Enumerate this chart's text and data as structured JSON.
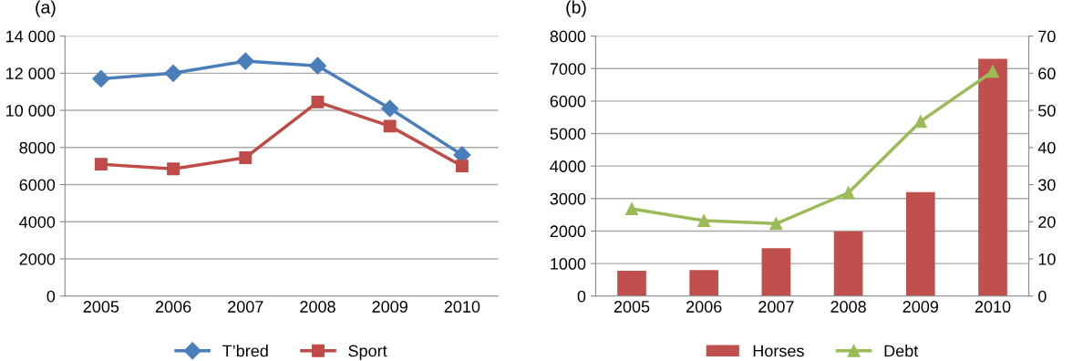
{
  "chart_data": [
    {
      "type": "line",
      "title": "(a)",
      "categories": [
        "2005",
        "2006",
        "2007",
        "2008",
        "2009",
        "2010"
      ],
      "series": [
        {
          "name": "T’bred",
          "color": "#4a7ebb",
          "values": [
            11700,
            12000,
            12650,
            12400,
            10100,
            7600
          ],
          "marker": "diamond"
        },
        {
          "name": "Sport",
          "color": "#be4b48",
          "values": [
            7100,
            6850,
            7450,
            10450,
            9150,
            7000
          ],
          "marker": "square"
        }
      ],
      "ylim": [
        0,
        14000
      ],
      "yticks": [
        0,
        2000,
        4000,
        6000,
        8000,
        {
          "value": 10000,
          "label": "10 000"
        },
        {
          "value": 12000,
          "label": "12 000"
        },
        {
          "value": 14000,
          "label": "14 000"
        }
      ],
      "grid": "y",
      "legend": "bottom",
      "line_style": "solid"
    },
    {
      "type": "bar",
      "title": "(b)",
      "categories": [
        "2005",
        "2006",
        "2007",
        "2008",
        "2009",
        "2010"
      ],
      "series": [
        {
          "name": "Horses",
          "color": "#c0504d",
          "values": [
            780,
            800,
            1470,
            1990,
            3200,
            7300
          ]
        },
        {
          "name": "Debt",
          "color": "#9bbb59",
          "type": "line",
          "axis": "y2",
          "marker": "triangle",
          "values": [
            23.5,
            20.3,
            19.5,
            27.8,
            47,
            60.5
          ]
        }
      ],
      "ylim": [
        0,
        8000
      ],
      "yticks": [
        0,
        1000,
        2000,
        3000,
        4000,
        5000,
        6000,
        7000,
        8000
      ],
      "y2lim": [
        0,
        70
      ],
      "y2ticks": [
        0,
        10,
        20,
        30,
        40,
        50,
        60,
        70
      ],
      "grid": "y",
      "legend": "bottom",
      "line_style": "solid"
    }
  ]
}
